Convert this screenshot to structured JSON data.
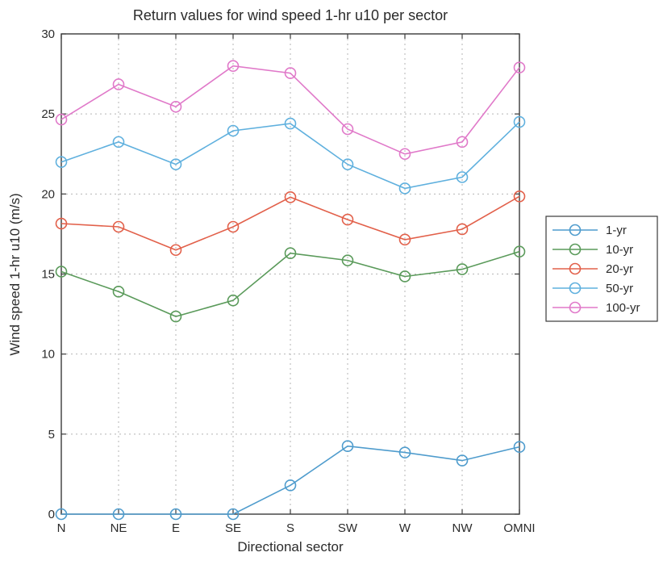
{
  "chart_data": {
    "type": "line",
    "title": "Return values for wind speed 1-hr u10 per sector",
    "xlabel": "Directional sector",
    "ylabel": "Wind speed 1-hr u10 (m/s)",
    "categories": [
      "N",
      "NE",
      "E",
      "SE",
      "S",
      "SW",
      "W",
      "NW",
      "OMNI"
    ],
    "ylim": [
      0,
      30
    ],
    "yticks": [
      0,
      5,
      10,
      15,
      20,
      25,
      30
    ],
    "grid": true,
    "legend_position": "right",
    "marker": "circle",
    "series": [
      {
        "name": "1-yr",
        "color": "#4f9ccd",
        "values": [
          0,
          0,
          0,
          0,
          1.8,
          4.25,
          3.85,
          3.35,
          4.2
        ]
      },
      {
        "name": "10-yr",
        "color": "#5a9a5a",
        "values": [
          15.15,
          13.9,
          12.35,
          13.35,
          16.3,
          15.85,
          14.85,
          15.3,
          16.4
        ]
      },
      {
        "name": "20-yr",
        "color": "#e2604a",
        "values": [
          18.15,
          17.95,
          16.5,
          17.95,
          19.8,
          18.4,
          17.15,
          17.8,
          19.85
        ]
      },
      {
        "name": "50-yr",
        "color": "#5fb0de",
        "values": [
          22.0,
          23.25,
          21.85,
          23.95,
          24.4,
          21.85,
          20.35,
          21.05,
          24.5
        ]
      },
      {
        "name": "100-yr",
        "color": "#e079c9",
        "values": [
          24.65,
          26.85,
          25.45,
          28.0,
          27.55,
          24.05,
          22.5,
          23.25,
          27.9
        ]
      }
    ]
  }
}
